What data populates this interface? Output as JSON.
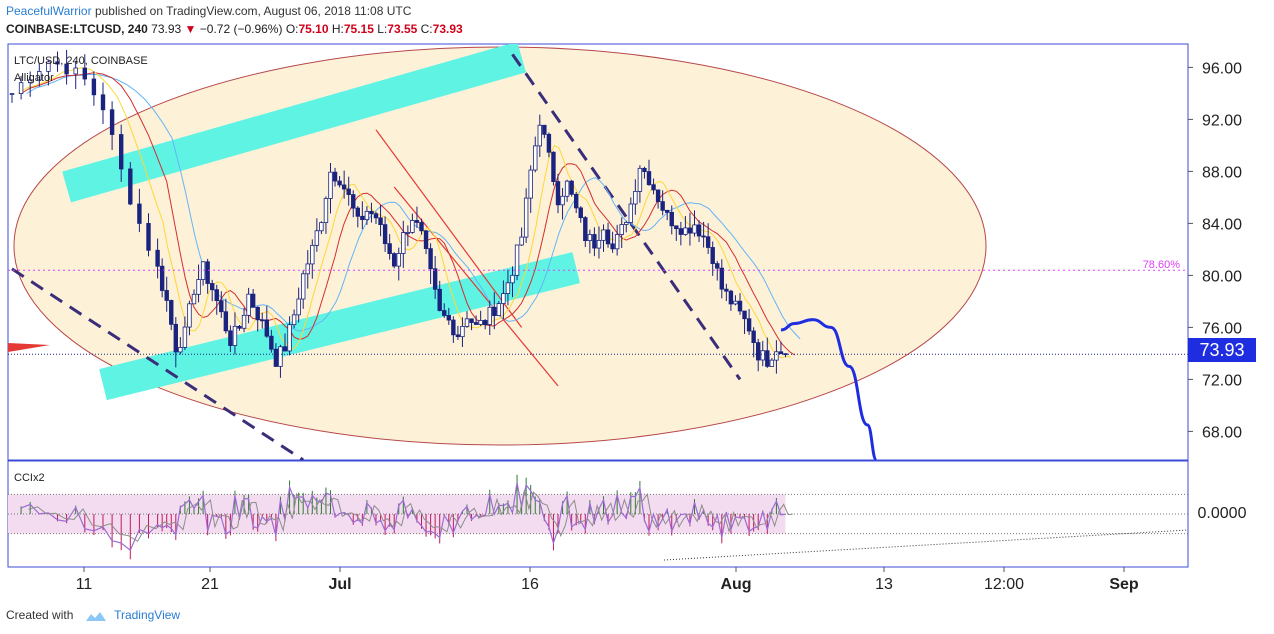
{
  "header": {
    "author": "PeacefulWarrior",
    "published_text": "published on TradingView.com, August 06, 2018 11:08 UTC",
    "symbol": "COINBASE:LTCUSD, 240",
    "last": "73.93",
    "change": "−0.72 (−0.96%)",
    "o_label": "O:",
    "o_value": "75.10",
    "h_label": "H:",
    "h_value": "75.15",
    "l_label": "L:",
    "l_value": "73.55",
    "c_label": "C:",
    "c_value": "73.93"
  },
  "legend": {
    "symbol_line": "LTC/USD, 240, COINBASE",
    "indicator": "Alligator",
    "osc_label": "CCIx2"
  },
  "footer": {
    "created_with": "Created with",
    "brand": "TradingView"
  },
  "colors": {
    "candle": "#1a237e",
    "jaw": "#64b5f6",
    "teeth": "#d32f2f",
    "lips": "#fdd835",
    "channel": "#5ff3e4",
    "ellipse_fill": "#fdf1d8",
    "ellipse_stroke": "#b7484b",
    "projection": "#1f2de0",
    "price_tag": "#1f2de0",
    "fib": "#e040fb"
  },
  "chart_data": {
    "type": "candlestick",
    "symbol": "LTC/USD",
    "timeframe": "240",
    "x_tick_labels": [
      "11",
      "21",
      "Jul",
      "16",
      "Aug",
      "13",
      "12:00",
      "Sep"
    ],
    "y_ticks": [
      68.0,
      72.0,
      76.0,
      80.0,
      84.0,
      88.0,
      92.0,
      96.0
    ],
    "y_tick_labels": [
      "68.00",
      "72.00",
      "76.00",
      "80.00",
      "84.00",
      "88.00",
      "92.00",
      "96.00"
    ],
    "ylim": [
      65.8,
      97.8
    ],
    "last_price": 73.93,
    "last_price_label": "73.93",
    "fib_level": {
      "label": "78.60%",
      "price": 80.4
    },
    "close_path": [
      [
        0,
        94
      ],
      [
        2,
        95.5
      ],
      [
        4,
        96.5
      ],
      [
        6,
        96
      ],
      [
        8,
        95
      ],
      [
        10,
        93
      ],
      [
        12,
        88
      ],
      [
        14,
        84
      ],
      [
        16,
        80.5
      ],
      [
        17,
        78
      ],
      [
        18,
        74.5
      ],
      [
        19,
        75.5
      ],
      [
        20,
        79
      ],
      [
        21,
        80.5
      ],
      [
        22,
        79
      ],
      [
        23,
        77
      ],
      [
        24,
        75
      ],
      [
        25,
        76
      ],
      [
        26,
        78.5
      ],
      [
        27,
        77
      ],
      [
        28,
        75.5
      ],
      [
        29,
        73.5
      ],
      [
        30,
        74.5
      ],
      [
        31,
        77
      ],
      [
        32,
        80
      ],
      [
        33,
        82
      ],
      [
        34,
        84.5
      ],
      [
        35,
        88
      ],
      [
        36,
        87.5
      ],
      [
        37,
        86
      ],
      [
        38,
        84
      ],
      [
        39,
        85
      ],
      [
        40,
        84.5
      ],
      [
        41,
        82.5
      ],
      [
        42,
        81
      ],
      [
        43,
        83
      ],
      [
        44,
        84.5
      ],
      [
        45,
        83
      ],
      [
        46,
        80
      ],
      [
        47,
        77
      ],
      [
        48,
        76.5
      ],
      [
        49,
        75.5
      ],
      [
        50,
        77
      ],
      [
        51,
        76
      ],
      [
        52,
        76.5
      ],
      [
        53,
        77.5
      ],
      [
        54,
        78.5
      ],
      [
        55,
        80.5
      ],
      [
        56,
        83
      ],
      [
        57,
        88
      ],
      [
        58,
        92
      ],
      [
        59,
        89
      ],
      [
        60,
        86
      ],
      [
        61,
        87
      ],
      [
        62,
        85
      ],
      [
        63,
        83
      ],
      [
        64,
        82.5
      ],
      [
        65,
        84
      ],
      [
        66,
        82
      ],
      [
        67,
        83.5
      ],
      [
        68,
        85.5
      ],
      [
        69,
        88.5
      ],
      [
        70,
        87.5
      ],
      [
        71,
        86
      ],
      [
        72,
        84.5
      ],
      [
        73,
        84
      ],
      [
        74,
        83.5
      ],
      [
        75,
        84
      ],
      [
        76,
        83
      ],
      [
        77,
        81.5
      ],
      [
        78,
        79
      ],
      [
        79,
        78
      ],
      [
        80,
        77
      ],
      [
        81,
        76
      ],
      [
        82,
        74
      ],
      [
        83,
        73.5
      ],
      [
        84,
        74.5
      ],
      [
        85,
        73.93
      ]
    ],
    "projection_path": [
      [
        84.5,
        75.8
      ],
      [
        86,
        76.3
      ],
      [
        88,
        76.6
      ],
      [
        90,
        76
      ],
      [
        92,
        73
      ],
      [
        94,
        68.5
      ],
      [
        95,
        65.8
      ]
    ],
    "annotations": {
      "cyan_channel_upper": [
        [
          6,
          86.8
        ],
        [
          56,
          96.8
        ]
      ],
      "cyan_channel_lower": [
        [
          10,
          71.6
        ],
        [
          62,
          80.6
        ]
      ],
      "red_channel_upper": [
        [
          42,
          86.8
        ],
        [
          60,
          71.5
        ]
      ],
      "red_channel_lower": [
        [
          40,
          91.2
        ],
        [
          56,
          76
        ]
      ],
      "dashed_lower": [
        [
          0,
          80.5
        ],
        [
          32,
          65.8
        ]
      ],
      "dashed_upper": [
        [
          55,
          97
        ],
        [
          80,
          72
        ]
      ]
    },
    "oscillator": {
      "name": "CCIx2",
      "zero_label": "0.0000",
      "upper_band": 130,
      "lower_band": -130,
      "ylim": [
        -350,
        350
      ]
    }
  }
}
